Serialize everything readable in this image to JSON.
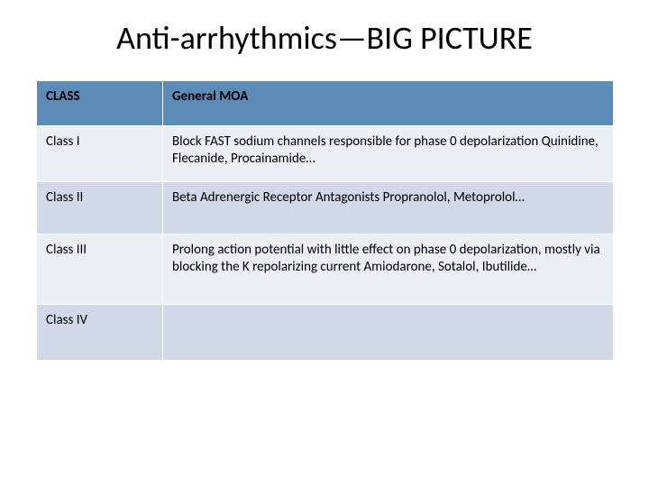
{
  "title": "Anti-arrhythmics—BIG PICTURE",
  "table": {
    "header_bg": "#5b8cb8",
    "row_light_bg": "#eaeef5",
    "row_dark_bg": "#d1d9e8",
    "border_color": "#ffffff",
    "columns": [
      "CLASS",
      "General MOA"
    ],
    "rows": [
      {
        "class": "Class I",
        "moa": "Block FAST sodium channels responsible for phase 0 depolarization Quinidine, Flecanide, Procainamide…"
      },
      {
        "class": "Class II",
        "moa": "Beta Adrenergic Receptor Antagonists Propranolol, Metoprolol…"
      },
      {
        "class": "Class III",
        "moa": "Prolong action potential with little effect on phase 0 depolarization, mostly via blocking the K repolarizing current Amiodarone, Sotalol, Ibutilide…"
      },
      {
        "class": "Class IV",
        "moa": ""
      }
    ]
  }
}
